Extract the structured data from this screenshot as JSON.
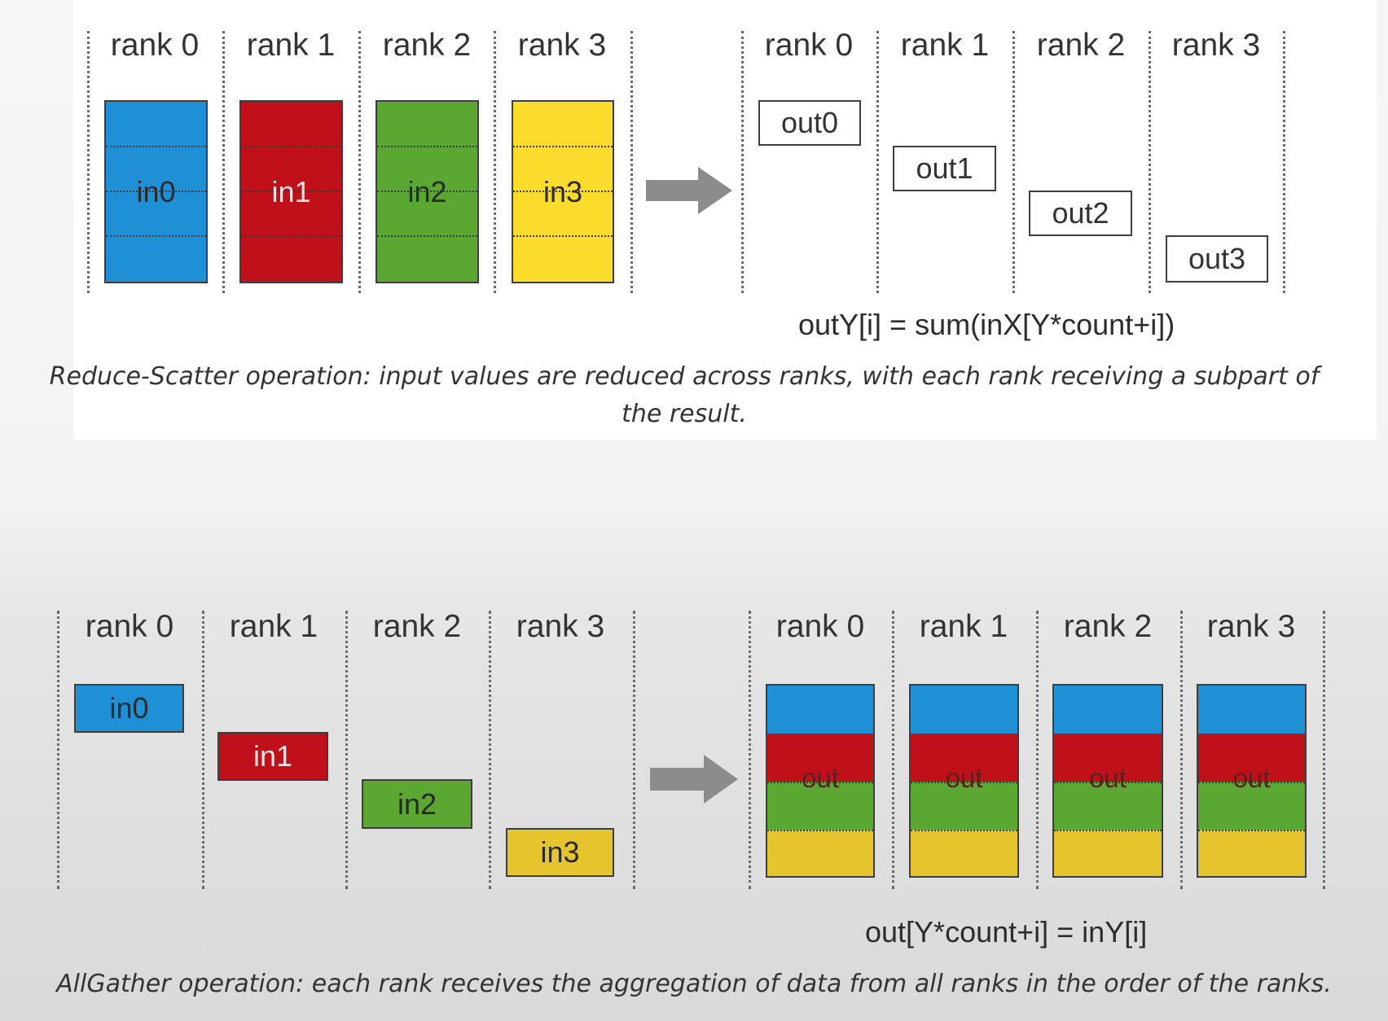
{
  "colors": {
    "blue": "#1f8fd6",
    "red": "#c0111b",
    "green": "#5aa732",
    "yellow_bright": "#fbdb2c",
    "yellow": "#e5c42d",
    "arrow": "#8c8c8c"
  },
  "reduce_scatter": {
    "input_ranks": [
      "rank 0",
      "rank 1",
      "rank 2",
      "rank 3"
    ],
    "inputs": [
      "in0",
      "in1",
      "in2",
      "in3"
    ],
    "output_ranks": [
      "rank 0",
      "rank 1",
      "rank 2",
      "rank 3"
    ],
    "outputs": [
      "out0",
      "out1",
      "out2",
      "out3"
    ],
    "formula": "outY[i] = sum(inX[Y*count+i])",
    "caption": "Reduce-Scatter operation: input values are reduced across ranks, with each rank receiving a subpart of the result."
  },
  "allgather": {
    "input_ranks": [
      "rank 0",
      "rank 1",
      "rank 2",
      "rank 3"
    ],
    "inputs": [
      "in0",
      "in1",
      "in2",
      "in3"
    ],
    "output_ranks": [
      "rank 0",
      "rank 1",
      "rank 2",
      "rank 3"
    ],
    "output_label": "out",
    "formula": "out[Y*count+i] = inY[i]",
    "caption": "AllGather operation: each rank receives the aggregation of data from all ranks in the order of the ranks."
  }
}
